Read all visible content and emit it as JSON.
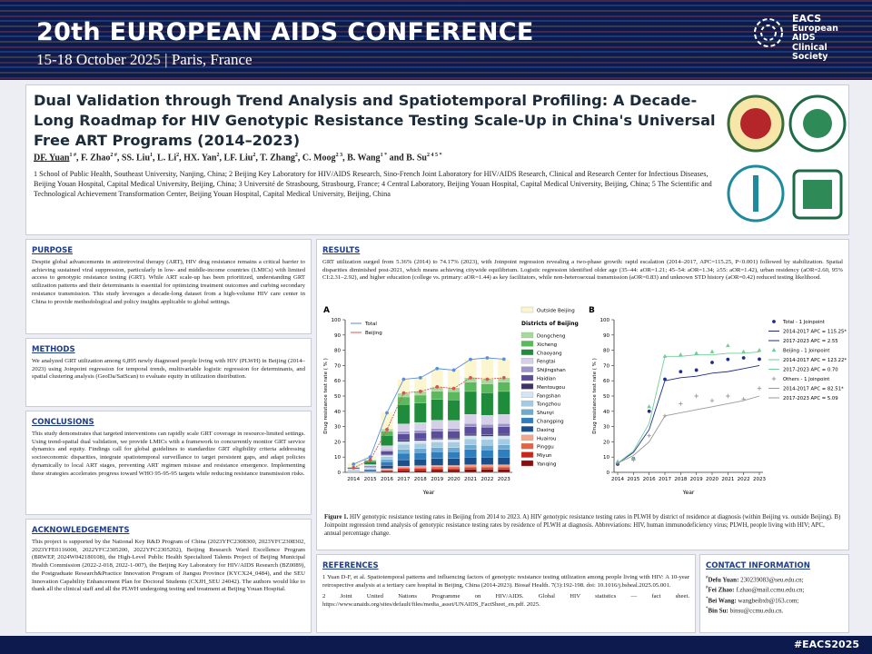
{
  "header": {
    "title": "20th EUROPEAN AIDS CONFERENCE",
    "subtitle": "15-18 October 2025 | Paris, France",
    "org": [
      "EACS",
      "European",
      "AIDS",
      "Clinical",
      "Society"
    ]
  },
  "poster": {
    "title": "Dual Validation through Trend Analysis and Spatiotemporal Profiling: A Decade-Long Roadmap for HIV Genotypic Resistance Testing Scale-Up in China's Universal Free ART Programs (2014–2023)",
    "authors": [
      {
        "name": "DF. Yuan",
        "sup": "1 #"
      },
      {
        "name": ", F. Zhao",
        "sup": "2 #"
      },
      {
        "name": ", SS. Liu",
        "sup": "1"
      },
      {
        "name": ", L. Li",
        "sup": "2"
      },
      {
        "name": ", HX. Yan",
        "sup": "2"
      },
      {
        "name": ", LF. Liu",
        "sup": "2"
      },
      {
        "name": ", T. Zhang",
        "sup": "2"
      },
      {
        "name": ", C. Moog",
        "sup": "2 3"
      },
      {
        "name": ", B. Wang",
        "sup": "1 *"
      },
      {
        "name": " and B. Su",
        "sup": "2 4 5 *"
      }
    ],
    "affiliations": "1 School of Public Health, Southeast University, Nanjing, China; 2 Beijing Key Laboratory for HIV/AIDS Research, Sino-French Joint Laboratory for HIV/AIDS Research, Clinical and Research Center for Infectious Diseases, Beijing Youan Hospital, Capital Medical University, Beijing, China; 3 Université de Strasbourg, Strasbourg, France; 4 Central Laboratory, Beijing Youan Hospital, Capital Medical University, Beijing, China; 5 The Scientific and Technological Achievement Transformation Center, Beijing Youan Hospital, Capital Medical University, Beijing, China"
  },
  "sections": {
    "purpose": {
      "heading": "PURPOSE",
      "text": "Despite global advancements in antiretroviral therapy (ART), HIV drug resistance remains a critical barrier to achieving sustained viral suppression, particularly in low- and middle-income countries (LMICs) with limited access to genotypic resistance testing (GRT). While ART scale-up has been prioritized, understanding GRT utilization patterns and their determinants is essential for optimizing treatment outcomes and curbing secondary resistance transmission. This study leverages a decade-long dataset from a high-volume HIV care center in China to provide methodological and policy insights applicable to global settings."
    },
    "methods": {
      "heading": "METHODS",
      "text": "We analyzed GRT utilization among 6,895 newly diagnosed people living with HIV (PLWH) in Beijing (2014–2023) using Joinpoint regression for temporal trends, multivariable logistic regression for determinants, and spatial clustering analysis (GeoDa/SatScan) to evaluate equity in utilization distribution."
    },
    "conclusions": {
      "heading": "CONCLUSIONS",
      "text": "This study demonstrates that targeted interventions can rapidly scale GRT coverage in resource-limited settings. Using trend-spatial dual validation, we provide LMICs with a framework to concurrently monitor GRT service dynamics and equity. Findings call for global guidelines to standardize GRT eligibility criteria addressing socioeconomic disparities, integrate spatiotemporal surveillance to target persistent gaps, and adapt policies dynamically to local ART stages, preventing ART regimen misuse and resistance emergence. Implementing these strategies accelerates progress toward WHO 95-95-95 targets while reducing resistance transmission risks."
    },
    "acknowledgements": {
      "heading": "ACKNOWLEDGEMENTS",
      "text": "This project is supported by the National Key R&D Program of China (2023YFC2308300, 2023YFC2308302, 2023YFE0116000, 2022YFC2305200, 2022YFC2305202), Beijing Research Ward Excellence Program (BRWEP, 2024W042180108), the High-Level Public Health Specialized Talents Project of Beijing Municipal Health Commission (2022-2-018, 2022-1-007), the Beijing Key Laboratory for HIV/AIDS Research (BZ0089), the Postgraduate Research&Practice Innovation Program of Jiangsu Province (KYCX24_0484), and the SEU Innovation Capability Enhancement Plan for Doctoral Students (CXJH_SEU 24042). The authors would like to thank all the clinical staff and all the PLWH undergoing testing and treatment at Beijing Youan Hospital."
    },
    "results": {
      "heading": "RESULTS",
      "text": "GRT utilization surged from 5.36% (2014) to 74.17% (2023), with Joinpoint regression revealing a two-phase growth: rapid escalation (2014–2017, APC=115.25, P<0.001) followed by stabilization. Spatial disparities diminished post-2021, which means achieving citywide equilibrium. Logistic regression identified older age (35–44: aOR=1.21; 45–54: aOR=1.34; ≥55: aOR=1.42), urban residency (aOR=2.60, 95% CI:2.31–2.92), and higher education (college vs. primary: aOR=1.44) as key facilitators, while non-heterosexual transmission (aOR=0.83) and unknown STD history (aOR=0.42) reduced testing likelihood.",
      "caption_label": "Figure 1.",
      "caption": "HIV genotypic resistance testing rates in Beijing from 2014 to 2023. A) HIV genotypic resistance testing rates in PLWH by district of residence at diagnosis (within Beijing vs. outside Beijing). B) Joinpoint regression trend analysis of genotypic resistance testing rates by residence of PLWH at diagnosis. Abbreviations: HIV, human immunodeficiency virus; PLWH, people living with HIV; APC, annual percentage change."
    },
    "references": {
      "heading": "REFERENCES",
      "items": [
        "1 Yuan D-F, et al. Spatiotemporal patterns and influencing factors of genotypic resistance testing utilization among people living with HIV: A 10-year retrospective analysis at a tertiary care hospital in Beijing, China (2014-2023). Biosaf Health. 7(3):192-198. doi: 10.1016/j.bsheal.2025.05.001.",
        "2 Joint United Nations Programme on HIV/AIDS. Global HIV statistics — fact sheet. https://www.unaids.org/sites/default/files/media_asset/UNAIDS_FactSheet_en.pdf. 2025."
      ]
    },
    "contact": {
      "heading": "CONTACT INFORMATION",
      "items": [
        {
          "sup": "#",
          "name": "Defu Yuan:",
          "email": "230239083@seu.edu.cn;"
        },
        {
          "sup": "#",
          "name": "Fei Zhao:",
          "email": "f.zhao@mail.ccmu.edu.cn;"
        },
        {
          "sup": "*",
          "name": "Bei Wang:",
          "email": "wangbeibxb@163.com;"
        },
        {
          "sup": "*",
          "name": "Bin Su:",
          "email": "binsu@ccmu.edu.cn."
        }
      ]
    }
  },
  "chart_data": [
    {
      "type": "bar",
      "panel": "A",
      "stacked": true,
      "xlabel": "Year",
      "ylabel": "Drug resistance test rate ( % )",
      "categories": [
        "2014",
        "2015",
        "2016",
        "2017",
        "2018",
        "2019",
        "2020",
        "2021",
        "2022",
        "2023"
      ],
      "ylim": [
        0,
        100
      ],
      "yticks": [
        0,
        10,
        20,
        30,
        40,
        50,
        60,
        70,
        80,
        90,
        100
      ],
      "legend_title": "Districts of Beijing",
      "series": [
        {
          "name": "Outside Beijing",
          "color": "#fbf6cf",
          "values": [
            2.4,
            2,
            11,
            9,
            9,
            12,
            12,
            12,
            14,
            12
          ]
        },
        {
          "name": "Dongcheng",
          "color": "#a6d99a",
          "values": [
            0.2,
            0.4,
            1.4,
            2.5,
            2.6,
            2.7,
            2.7,
            3,
            2.9,
            3
          ]
        },
        {
          "name": "Xicheng",
          "color": "#5cb85c",
          "values": [
            0.3,
            0.8,
            2.7,
            5,
            5.1,
            5.4,
            5.3,
            6,
            5.9,
            6
          ]
        },
        {
          "name": "Chaoyang",
          "color": "#1e8c3a",
          "values": [
            0.8,
            2,
            6.8,
            12.6,
            12.8,
            13.5,
            13.4,
            15,
            14.7,
            15
          ]
        },
        {
          "name": "Fengtai",
          "color": "#d6cfe8",
          "values": [
            0.3,
            0.8,
            2.7,
            5,
            5.1,
            5.4,
            5.3,
            6,
            5.9,
            6
          ]
        },
        {
          "name": "Shijingshan",
          "color": "#9e94c6",
          "values": [
            0.1,
            0.3,
            0.9,
            1.7,
            1.7,
            1.8,
            1.8,
            2,
            2,
            2
          ]
        },
        {
          "name": "Haidian",
          "color": "#5a4e9c",
          "values": [
            0.3,
            0.7,
            2.3,
            4.2,
            4.3,
            4.5,
            4.5,
            5,
            4.9,
            5
          ]
        },
        {
          "name": "Mentougou",
          "color": "#3e3268",
          "values": [
            0.1,
            0.1,
            0.5,
            0.8,
            0.9,
            0.9,
            0.9,
            1,
            1,
            1
          ]
        },
        {
          "name": "Fangshan",
          "color": "#d3e6f2",
          "values": [
            0.1,
            0.3,
            0.9,
            1.7,
            1.7,
            1.8,
            1.8,
            2,
            2,
            2
          ]
        },
        {
          "name": "Tongzhou",
          "color": "#a5cbe3",
          "values": [
            0.2,
            0.5,
            1.8,
            3.4,
            3.4,
            3.6,
            3.6,
            4,
            3.9,
            4
          ]
        },
        {
          "name": "Shunyi",
          "color": "#6aaad3",
          "values": [
            0.2,
            0.4,
            1.4,
            2.5,
            2.6,
            2.7,
            2.7,
            3,
            2.9,
            3
          ]
        },
        {
          "name": "Changping",
          "color": "#2f7fbf",
          "values": [
            0.3,
            0.7,
            2.3,
            4.2,
            4.3,
            4.5,
            4.5,
            5,
            4.9,
            5
          ]
        },
        {
          "name": "Daxing",
          "color": "#1b4f8a",
          "values": [
            0.3,
            0.7,
            2.3,
            4.2,
            4.3,
            4.5,
            4.5,
            5,
            4.9,
            5
          ]
        },
        {
          "name": "Huairou",
          "color": "#f7a58a",
          "values": [
            0.1,
            0.1,
            0.5,
            0.8,
            0.9,
            0.9,
            0.9,
            1,
            1,
            1
          ]
        },
        {
          "name": "Pinggu",
          "color": "#e8623f",
          "values": [
            0.1,
            0.1,
            0.5,
            0.8,
            0.9,
            0.9,
            0.9,
            1,
            1,
            1
          ]
        },
        {
          "name": "Miyun",
          "color": "#c7271d",
          "values": [
            0.1,
            0.1,
            0.5,
            0.8,
            0.9,
            0.9,
            0.9,
            1,
            1,
            1
          ]
        },
        {
          "name": "Yanqing",
          "color": "#8b0d0d",
          "values": [
            0.1,
            0.3,
            0.9,
            1.7,
            1.7,
            1.8,
            1.8,
            2,
            2,
            2
          ]
        }
      ],
      "lines": [
        {
          "name": "Total",
          "color": "#5b8fd9",
          "values": [
            5.36,
            10,
            39,
            61,
            62,
            68,
            67,
            74,
            75,
            74.17
          ]
        },
        {
          "name": "Beijing",
          "color": "#d9534f",
          "values": [
            3,
            8,
            28,
            52,
            53,
            56,
            55,
            62,
            61,
            62
          ]
        }
      ]
    },
    {
      "type": "line",
      "panel": "B",
      "xlabel": "Year",
      "ylabel": "Drug resistance test rate ( % )",
      "xlim": [
        2014,
        2023
      ],
      "xticks": [
        2014,
        2015,
        2016,
        2017,
        2018,
        2019,
        2020,
        2021,
        2022,
        2023
      ],
      "ylim": [
        0,
        100
      ],
      "yticks": [
        0,
        10,
        20,
        30,
        40,
        50,
        60,
        70,
        80,
        90,
        100
      ],
      "series": [
        {
          "name": "Total - 1 Joinpoint",
          "color": "#1f2d8a",
          "marker": "circle",
          "x": [
            2014,
            2015,
            2016,
            2017,
            2018,
            2019,
            2020,
            2021,
            2022,
            2023
          ],
          "values": [
            5.36,
            9,
            40,
            61,
            66,
            67,
            72,
            74,
            75,
            74.17
          ]
        },
        {
          "name": "2014-2017 APC = 115.25*",
          "color": "#1f2d8a",
          "x": [
            2014,
            2015,
            2016,
            2017
          ],
          "values": [
            6,
            13,
            28,
            60
          ]
        },
        {
          "name": "2017-2023 APC = 2.55",
          "color": "#1f2d8a",
          "x": [
            2017,
            2018,
            2019,
            2020,
            2021,
            2022,
            2023
          ],
          "values": [
            60,
            62,
            63,
            65,
            66,
            68,
            70
          ]
        },
        {
          "name": "Beijing - 1 Joinpoint",
          "color": "#6fcf97",
          "marker": "triangle",
          "x": [
            2014,
            2015,
            2016,
            2017,
            2018,
            2019,
            2020,
            2021,
            2022,
            2023
          ],
          "values": [
            7,
            9,
            43,
            76,
            77,
            78,
            79,
            83,
            79,
            80
          ]
        },
        {
          "name": "2014-2017 APC = 123.22*",
          "color": "#6fcf97",
          "x": [
            2014,
            2015,
            2016,
            2017
          ],
          "values": [
            6,
            14,
            32,
            76
          ]
        },
        {
          "name": "2017-2023 APC = 0.70",
          "color": "#6fcf97",
          "x": [
            2017,
            2018,
            2019,
            2020,
            2021,
            2022,
            2023
          ],
          "values": [
            76,
            76,
            77,
            77,
            78,
            78,
            79
          ]
        },
        {
          "name": "Others - 1 Joinpoint",
          "color": "#999999",
          "marker": "plus",
          "x": [
            2014,
            2015,
            2016,
            2017,
            2018,
            2019,
            2020,
            2021,
            2022,
            2023
          ],
          "values": [
            6,
            8,
            24,
            37,
            45,
            50,
            47,
            50,
            48,
            55
          ]
        },
        {
          "name": "2014-2017 APC = 82.51*",
          "color": "#999999",
          "x": [
            2014,
            2015,
            2016,
            2017
          ],
          "values": [
            6,
            11,
            20,
            37
          ]
        },
        {
          "name": "2017-2023 APC = 5.09",
          "color": "#999999",
          "x": [
            2017,
            2018,
            2019,
            2020,
            2021,
            2022,
            2023
          ],
          "values": [
            37,
            39,
            41,
            43,
            45,
            47,
            50
          ]
        }
      ]
    }
  ],
  "footer": "#EACS2025"
}
